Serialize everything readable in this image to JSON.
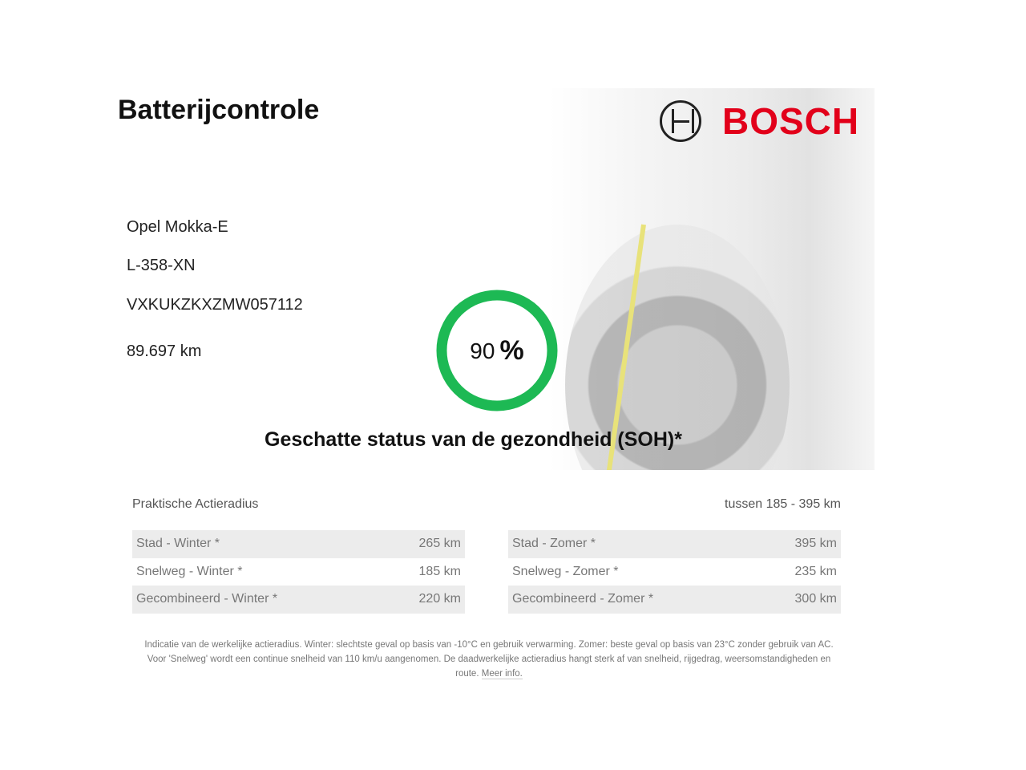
{
  "title": "Batterijcontrole",
  "brand": {
    "name": "BOSCH",
    "color": "#e2001a"
  },
  "vehicle": {
    "model": "Opel Mokka-E",
    "plate": "L-358-XN",
    "vin": "VXKUKZKXZMW057112",
    "mileage": "89.697 km"
  },
  "soh": {
    "value": "90",
    "unit": "%",
    "label": "Geschatte status van de gezondheid (SOH)*",
    "color": "#1db954"
  },
  "range": {
    "label": "Praktische Actieradius",
    "summary": "tussen 185 - 395 km",
    "winter": [
      {
        "label": "Stad - Winter *",
        "value": "265 km"
      },
      {
        "label": "Snelweg - Winter *",
        "value": "185 km"
      },
      {
        "label": "Gecombineerd - Winter *",
        "value": "220 km"
      }
    ],
    "summer": [
      {
        "label": "Stad - Zomer *",
        "value": "395 km"
      },
      {
        "label": "Snelweg - Zomer *",
        "value": "235 km"
      },
      {
        "label": "Gecombineerd - Zomer *",
        "value": "300 km"
      }
    ]
  },
  "footnote": {
    "text": "Indicatie van de werkelijke actieradius. Winter: slechtste geval op basis van -10°C en gebruik verwarming. Zomer: beste geval op basis van 23°C zonder gebruik van AC. Voor 'Snelweg' wordt een continue snelheid van 110 km/u aangenomen. De daadwerkelijke actieradius hangt sterk af van snelheid, rijgedrag, weersomstandigheden en route.",
    "link": "Meer info."
  }
}
